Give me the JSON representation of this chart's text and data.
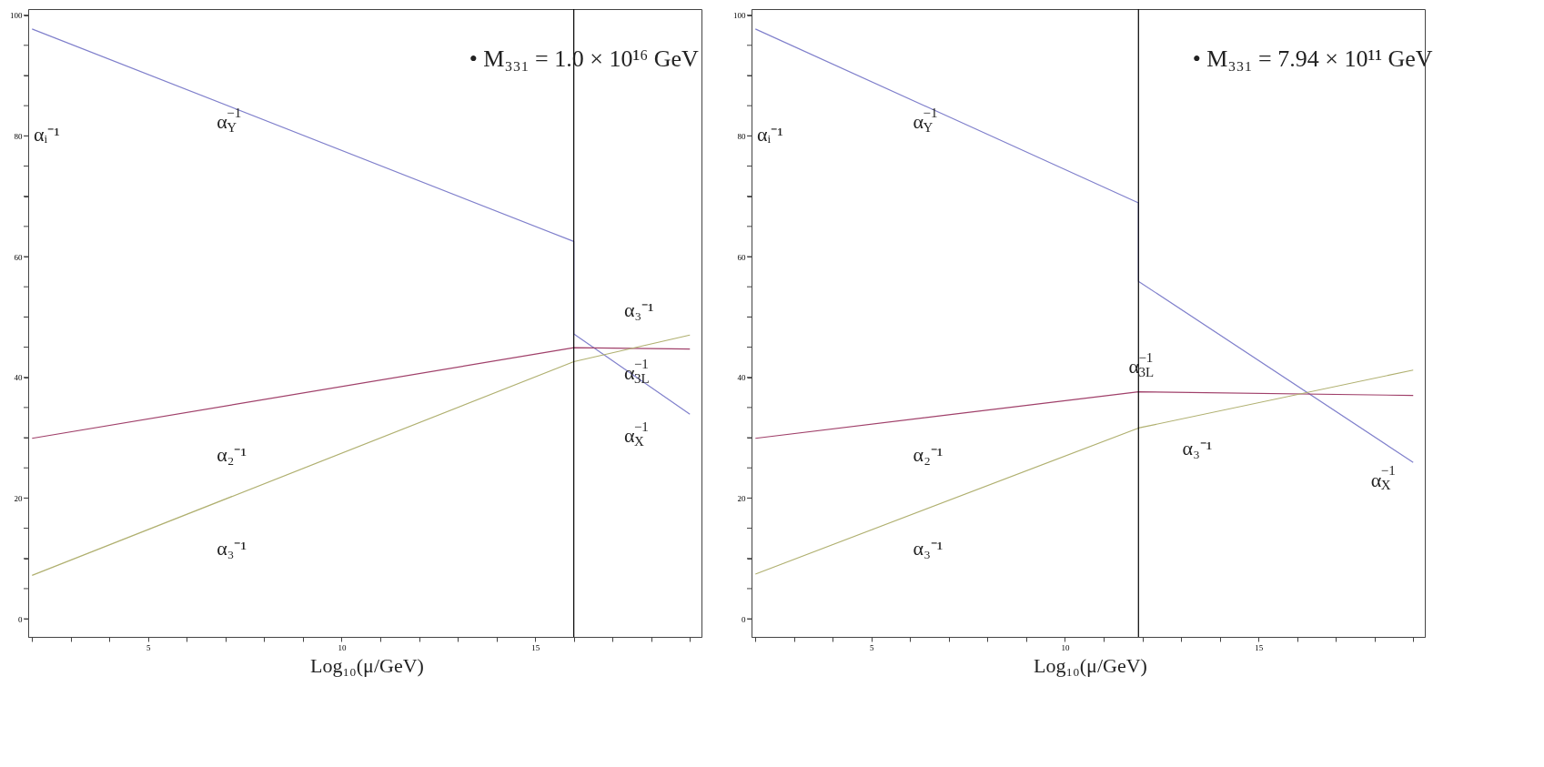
{
  "chart_data": [
    {
      "type": "line",
      "xlabel": "Log₁₀(μ/GeV)",
      "ylabel": "αᵢ⁻¹",
      "xlim": [
        1.9,
        19.3
      ],
      "ylim": [
        -3,
        101
      ],
      "xticks": [
        {
          "value": 2,
          "label": null
        },
        {
          "value": 3,
          "label": null
        },
        {
          "value": 4,
          "label": null
        },
        5,
        {
          "value": 6,
          "label": null
        },
        {
          "value": 7,
          "label": null
        },
        {
          "value": 8,
          "label": null
        },
        {
          "value": 9,
          "label": null
        },
        10,
        {
          "value": 11,
          "label": null
        },
        {
          "value": 12,
          "label": null
        },
        {
          "value": 13,
          "label": null
        },
        {
          "value": 14,
          "label": null
        },
        15,
        {
          "value": 16,
          "label": null
        },
        {
          "value": 17,
          "label": null
        },
        {
          "value": 18,
          "label": null
        },
        {
          "value": 19,
          "label": null
        }
      ],
      "yticks": [
        0,
        {
          "value": 5,
          "label": null
        },
        {
          "value": 10,
          "label": null
        },
        {
          "value": 15,
          "label": null
        },
        20,
        {
          "value": 25,
          "label": null
        },
        {
          "value": 30,
          "label": null
        },
        {
          "value": 35,
          "label": null
        },
        40,
        {
          "value": 45,
          "label": null
        },
        {
          "value": 50,
          "label": null
        },
        {
          "value": 55,
          "label": null
        },
        60,
        {
          "value": 65,
          "label": null
        },
        {
          "value": 70,
          "label": null
        },
        {
          "value": 75,
          "label": null
        },
        80,
        {
          "value": 85,
          "label": null
        },
        {
          "value": 90,
          "label": null
        },
        {
          "value": 95,
          "label": null
        },
        100
      ],
      "grid": false,
      "legend": false,
      "marker": "none",
      "line_style": "solid",
      "series": [
        {
          "color": "#8080cc",
          "x": [
            2,
            16,
            16,
            19
          ],
          "values": [
            97.7,
            62.5,
            47.2,
            33.9
          ]
        },
        {
          "color": "#a0406a",
          "x": [
            2,
            16,
            19
          ],
          "values": [
            29.9,
            44.9,
            44.7
          ]
        },
        {
          "color": "#b0b070",
          "x": [
            2,
            16,
            19
          ],
          "values": [
            7.2,
            42.6,
            47.0
          ]
        }
      ],
      "ref_lines": [
        {
          "axis": "x",
          "value": 16,
          "label": null,
          "color": "#000000"
        }
      ],
      "annotations": [
        "• M₃₃₁ = 1.0 × 10¹⁶  GeV",
        "α$_{Y}$$^{−1}$",
        "α₂⁻¹",
        "α₃⁻¹",
        "α₃⁻¹",
        "α$_{3L}$$^{−1}$",
        "α$_{X}$$^{−1}$"
      ]
    },
    {
      "type": "line",
      "xlabel": "Log₁₀(μ/GeV)",
      "ylabel": "αᵢ⁻¹",
      "xlim": [
        1.9,
        19.3
      ],
      "ylim": [
        -3,
        101
      ],
      "xticks": [
        {
          "value": 2,
          "label": null
        },
        {
          "value": 3,
          "label": null
        },
        {
          "value": 4,
          "label": null
        },
        5,
        {
          "value": 6,
          "label": null
        },
        {
          "value": 7,
          "label": null
        },
        {
          "value": 8,
          "label": null
        },
        {
          "value": 9,
          "label": null
        },
        10,
        {
          "value": 11,
          "label": null
        },
        {
          "value": 12,
          "label": null
        },
        {
          "value": 13,
          "label": null
        },
        {
          "value": 14,
          "label": null
        },
        15,
        {
          "value": 16,
          "label": null
        },
        {
          "value": 17,
          "label": null
        },
        {
          "value": 18,
          "label": null
        },
        {
          "value": 19,
          "label": null
        }
      ],
      "yticks": [
        0,
        {
          "value": 5,
          "label": null
        },
        {
          "value": 10,
          "label": null
        },
        {
          "value": 15,
          "label": null
        },
        20,
        {
          "value": 25,
          "label": null
        },
        {
          "value": 30,
          "label": null
        },
        {
          "value": 35,
          "label": null
        },
        40,
        {
          "value": 45,
          "label": null
        },
        {
          "value": 50,
          "label": null
        },
        {
          "value": 55,
          "label": null
        },
        60,
        {
          "value": 65,
          "label": null
        },
        {
          "value": 70,
          "label": null
        },
        {
          "value": 75,
          "label": null
        },
        80,
        {
          "value": 85,
          "label": null
        },
        {
          "value": 90,
          "label": null
        },
        {
          "value": 95,
          "label": null
        },
        100
      ],
      "grid": false,
      "legend": false,
      "marker": "none",
      "line_style": "solid",
      "series": [
        {
          "color": "#8080cc",
          "x": [
            2,
            11.9,
            11.9,
            19
          ],
          "values": [
            97.7,
            68.9,
            55.9,
            25.9
          ]
        },
        {
          "color": "#a0406a",
          "x": [
            2,
            11.9,
            19
          ],
          "values": [
            29.9,
            37.6,
            37.0
          ]
        },
        {
          "color": "#b0b070",
          "x": [
            2,
            11.9,
            19
          ],
          "values": [
            7.4,
            31.6,
            41.2
          ]
        }
      ],
      "ref_lines": [
        {
          "axis": "x",
          "value": 11.9,
          "label": null,
          "color": "#000000"
        }
      ],
      "annotations": [
        "• M₃₃₁ = 7.94 × 10¹¹  GeV",
        "α$_{Y}$$^{−1}$",
        "α₂⁻¹",
        "α₃⁻¹",
        "α$_{3L}$$^{−1}$",
        "α₃⁻¹",
        "α$_{X}$$^{−1}$"
      ]
    }
  ]
}
